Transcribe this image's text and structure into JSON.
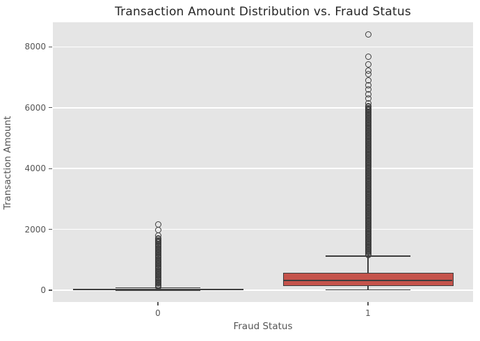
{
  "chart_data": {
    "type": "box",
    "title": "Transaction Amount Distribution vs. Fraud Status",
    "xlabel": "Fraud Status",
    "ylabel": "Transaction Amount",
    "categories": [
      "0",
      "1"
    ],
    "ylim": [
      -390,
      8810
    ],
    "yticks": [
      0,
      2000,
      4000,
      6000,
      8000
    ],
    "legend": "none",
    "grid": "horizontal white gridlines on gray panel",
    "series": [
      {
        "category": "0",
        "box": {
          "whisker_low": 0,
          "q1": 5,
          "median": 20,
          "q3": 42,
          "whisker_high": 78
        },
        "fill_color": "#7a7a7a",
        "outliers_discrete": [
          2170,
          1985,
          1790
        ],
        "outlier_band": {
          "min": 95,
          "max": 1700,
          "count": 58
        }
      },
      {
        "category": "1",
        "box": {
          "whisker_low": 5,
          "q1": 130,
          "median": 320,
          "q3": 575,
          "whisker_high": 1120
        },
        "fill_color": "#c5534b",
        "outliers_discrete": [
          8400,
          7680,
          7420,
          7210,
          7100,
          6900,
          6750,
          6600,
          6450,
          6300,
          6150
        ],
        "outlier_band": {
          "min": 1150,
          "max": 6050,
          "count": 170
        }
      }
    ],
    "style": {
      "panel_background": "#e5e5e5",
      "figure_background": "#ffffff",
      "gridline_color": "#ffffff",
      "edge_color": "#3d3d3d",
      "tick_label_color": "#555555",
      "title_color": "#262626"
    }
  }
}
